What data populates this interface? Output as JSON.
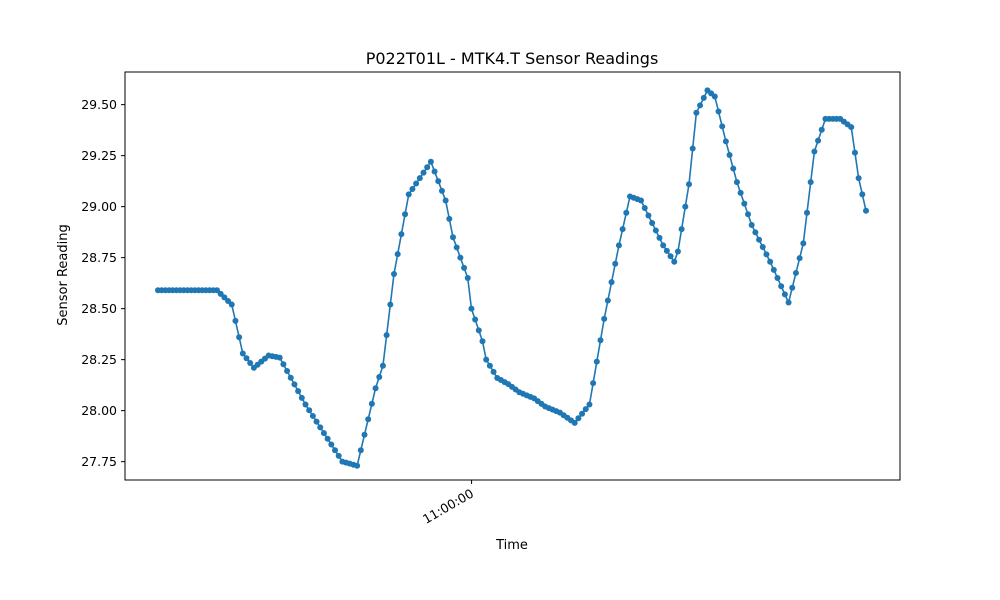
{
  "chart_data": {
    "type": "line",
    "title": "P022T01L - MTK4.T Sensor Readings",
    "xlabel": "Time",
    "ylabel": "Sensor Reading",
    "ylim": [
      27.66,
      29.66
    ],
    "yticks": [
      "27.75",
      "28.00",
      "28.25",
      "28.50",
      "28.75",
      "29.00",
      "29.25",
      "29.50"
    ],
    "ytick_values": [
      27.75,
      28.0,
      28.25,
      28.5,
      28.75,
      29.0,
      29.25,
      29.5
    ],
    "xticks": [
      {
        "label": "11:00:00",
        "position": 0.4472
      }
    ],
    "grid": false,
    "color": "#1f77b4",
    "series": [
      {
        "marker": "circle",
        "x_index": [
          0,
          16,
          20,
          23,
          26,
          30,
          33,
          40,
          50,
          54,
          59,
          61,
          64,
          68,
          74,
          78,
          80,
          84,
          85,
          88,
          89,
          92,
          95,
          98,
          102,
          105,
          109,
          113,
          117,
          121,
          125,
          128,
          131,
          134,
          137,
          140,
          141,
          144,
          146,
          149,
          151,
          154,
          157,
          161,
          166,
          171,
          175,
          178,
          181,
          185,
          188,
          190,
          192
        ],
        "values": [
          28.59,
          28.59,
          28.52,
          28.28,
          28.21,
          28.27,
          28.26,
          28.03,
          27.75,
          27.73,
          28.11,
          28.22,
          28.67,
          29.06,
          29.22,
          29.03,
          28.85,
          28.65,
          28.5,
          28.34,
          28.25,
          28.16,
          28.13,
          28.09,
          28.06,
          28.02,
          27.99,
          27.94,
          28.03,
          28.45,
          28.81,
          29.05,
          29.03,
          28.92,
          28.81,
          28.73,
          28.78,
          29.11,
          29.46,
          29.57,
          29.54,
          29.32,
          29.12,
          28.91,
          28.73,
          28.53,
          28.82,
          29.27,
          29.43,
          29.43,
          29.39,
          29.14,
          28.98
        ]
      }
    ]
  }
}
